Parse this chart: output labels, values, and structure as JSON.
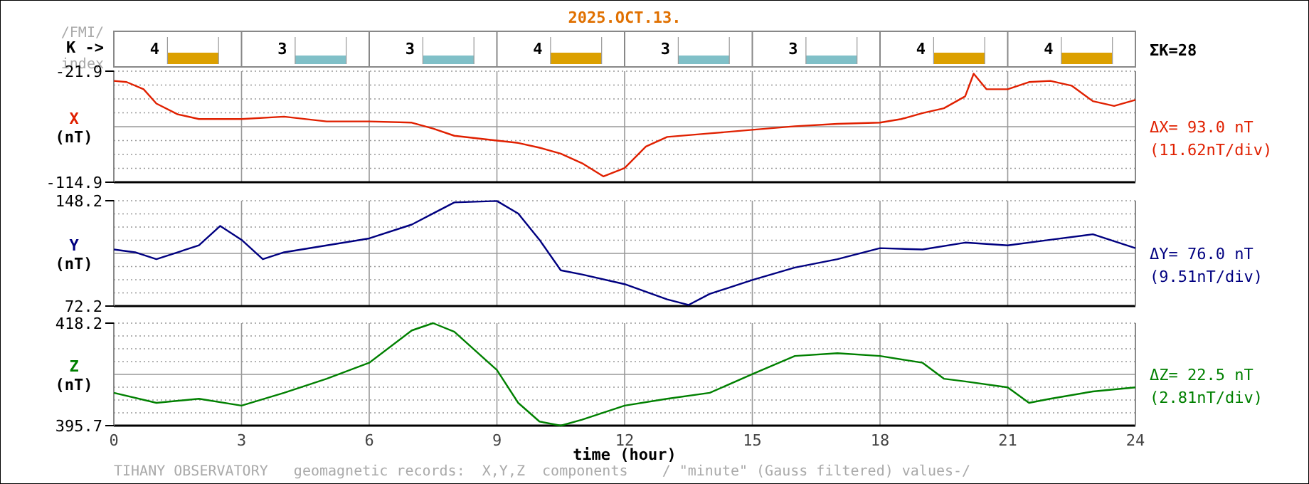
{
  "chart_data": [
    {
      "type": "bar",
      "title": "2025.OCT.13.",
      "ylabel": "K ->",
      "annotations": [
        "/FMI/",
        "index",
        "ΣK=28"
      ],
      "categories": [
        null,
        null,
        null,
        null,
        null,
        null,
        null,
        null
      ],
      "values": [
        4,
        3,
        3,
        4,
        3,
        3,
        4,
        4
      ],
      "colors": [
        "#dca000",
        "#80c0c8",
        "#80c0c8",
        "#dca000",
        "#80c0c8",
        "#80c0c8",
        "#dca000",
        "#dca000"
      ],
      "data_labels": true
    },
    {
      "type": "line",
      "ylabel": "X (nT)",
      "annotations": [
        "ΔX= 93.0 nT",
        "(11.62nT/div)"
      ],
      "xlim": [
        0,
        24
      ],
      "xticks": [
        0,
        3,
        6,
        9,
        12,
        15,
        18,
        21,
        24
      ],
      "ylim": [
        -114.9,
        -21.9
      ],
      "yticks": [
        -114.9,
        {
          "value": -103.275,
          "label": null
        },
        {
          "value": -91.65,
          "label": null
        },
        {
          "value": -80.025,
          "label": null
        },
        {
          "value": -68.4,
          "label": null
        },
        {
          "value": -56.775,
          "label": null
        },
        {
          "value": -45.15,
          "label": null
        },
        {
          "value": -33.525,
          "label": null
        },
        -21.9
      ],
      "grid": true,
      "tick_labels": "y",
      "series": [
        {
          "color": "#e02000",
          "x": [
            0,
            0.3,
            0.7,
            1,
            1.5,
            2,
            3,
            4,
            5,
            6,
            7,
            7.5,
            8,
            9,
            9.5,
            10,
            10.5,
            11,
            11.5,
            12,
            12.5,
            13,
            14,
            15,
            16,
            17,
            18,
            18.5,
            19,
            19.5,
            20,
            20.2,
            20.5,
            21,
            21.5,
            22,
            22.5,
            23,
            23.5,
            24
          ],
          "values": [
            -30,
            -31,
            -37,
            -49,
            -58,
            -62,
            -62,
            -60,
            -64,
            -64,
            -65,
            -70,
            -76,
            -80,
            -82,
            -86,
            -91,
            -99,
            -110,
            -103,
            -85,
            -77,
            -74,
            -71,
            -68,
            -66,
            -65,
            -62,
            -57,
            -53,
            -43,
            -24,
            -37,
            -37,
            -31,
            -30,
            -34,
            -47,
            -51,
            -46
          ]
        }
      ]
    },
    {
      "type": "line",
      "ylabel": "Y (nT)",
      "annotations": [
        "ΔY= 76.0 nT",
        "(9.51nT/div)"
      ],
      "xlim": [
        0,
        24
      ],
      "xticks": [
        0,
        3,
        6,
        9,
        12,
        15,
        18,
        21,
        24
      ],
      "ylim": [
        72.2,
        148.2
      ],
      "yticks": [
        72.2,
        {
          "value": 81.7,
          "label": null
        },
        {
          "value": 91.2,
          "label": null
        },
        {
          "value": 100.7,
          "label": null
        },
        {
          "value": 110.2,
          "label": null
        },
        {
          "value": 119.7,
          "label": null
        },
        {
          "value": 129.2,
          "label": null
        },
        {
          "value": 138.7,
          "label": null
        },
        148.2
      ],
      "grid": true,
      "tick_labels": "y",
      "series": [
        {
          "color": "#000080",
          "x": [
            0,
            0.5,
            1,
            2,
            2.5,
            3,
            3.5,
            4,
            5,
            6,
            7,
            7.5,
            8,
            9,
            9.5,
            10,
            10.5,
            11,
            12,
            13,
            13.5,
            14,
            15,
            16,
            17,
            18,
            19,
            20,
            21,
            22,
            23,
            24
          ],
          "values": [
            113,
            111,
            106,
            116,
            130,
            120,
            106,
            111,
            116,
            121,
            131,
            139,
            147,
            148,
            139,
            120,
            98,
            95,
            88,
            77,
            73,
            81,
            91,
            100,
            106,
            114,
            113,
            118,
            116,
            120,
            124,
            114
          ]
        }
      ]
    },
    {
      "type": "line",
      "ylabel": "Z (nT)",
      "xlabel": "time (hour)",
      "annotations": [
        "ΔZ= 22.5 nT",
        "(2.81nT/div)",
        "TIHANY OBSERVATORY   geomagnetic records:  X,Y,Z  components    / \"minute\" (Gauss filtered) values-/"
      ],
      "xlim": [
        0,
        24
      ],
      "xticks": [
        0,
        3,
        6,
        9,
        12,
        15,
        18,
        21,
        24
      ],
      "ylim": [
        395.7,
        418.2
      ],
      "yticks": [
        395.7,
        {
          "value": 398.51,
          "label": null
        },
        {
          "value": 401.33,
          "label": null
        },
        {
          "value": 404.14,
          "label": null
        },
        {
          "value": 406.95,
          "label": null
        },
        {
          "value": 409.76,
          "label": null
        },
        {
          "value": 412.58,
          "label": null
        },
        {
          "value": 415.39,
          "label": null
        },
        418.2
      ],
      "grid": true,
      "series": [
        {
          "color": "#008000",
          "x": [
            0,
            1,
            2,
            3,
            4,
            5,
            6,
            7,
            7.5,
            8,
            9,
            9.5,
            10,
            10.5,
            11,
            12,
            13,
            14,
            15,
            16,
            17,
            18,
            19,
            19.5,
            20,
            21,
            21.5,
            22,
            23,
            24
          ],
          "values": [
            402.9,
            400.7,
            401.6,
            400.1,
            402.9,
            406.0,
            409.5,
            416.6,
            418.2,
            416.3,
            407.9,
            400.7,
            396.6,
            395.7,
            397.0,
            400.1,
            401.6,
            402.9,
            407.0,
            411.0,
            411.6,
            411.0,
            409.5,
            406.0,
            405.4,
            404.1,
            400.7,
            401.6,
            403.2,
            404.1
          ]
        }
      ]
    }
  ]
}
